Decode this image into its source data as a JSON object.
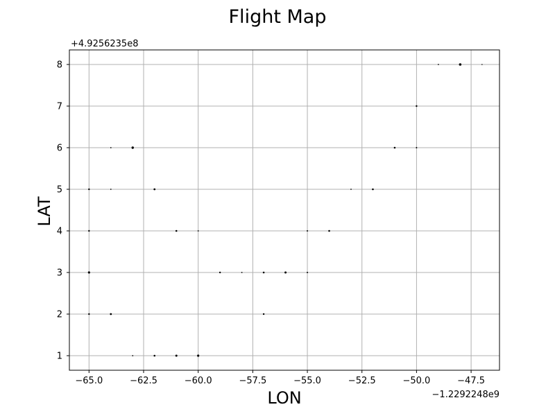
{
  "chart_data": {
    "type": "scatter",
    "title": "Flight Map",
    "xlabel": "LON",
    "ylabel": "LAT",
    "x_offset_label": "−1.2292248e9",
    "y_offset_label": "+4.9256235e8",
    "xlim": [
      -65.9,
      -46.2
    ],
    "ylim": [
      0.65,
      8.35
    ],
    "x_ticks": [
      -65.0,
      -62.5,
      -60.0,
      -57.5,
      -55.0,
      -52.5,
      -50.0,
      -47.5
    ],
    "x_tick_labels": [
      "−65.0",
      "−62.5",
      "−60.0",
      "−57.5",
      "−55.0",
      "−52.5",
      "−50.0",
      "−47.5"
    ],
    "y_ticks": [
      1,
      2,
      3,
      4,
      5,
      6,
      7,
      8
    ],
    "y_tick_labels": [
      "1",
      "2",
      "3",
      "4",
      "5",
      "6",
      "7",
      "8"
    ],
    "grid": true,
    "marker_color": "#000000",
    "points": [
      {
        "x": -65,
        "y": 2,
        "s": 1.2
      },
      {
        "x": -64,
        "y": 2,
        "s": 1.4
      },
      {
        "x": -65,
        "y": 3,
        "s": 1.6
      },
      {
        "x": -65,
        "y": 4,
        "s": 1.2
      },
      {
        "x": -65,
        "y": 5,
        "s": 1.2
      },
      {
        "x": -64,
        "y": 5,
        "s": 0.9
      },
      {
        "x": -64,
        "y": 6,
        "s": 0.9
      },
      {
        "x": -63,
        "y": 6,
        "s": 1.7
      },
      {
        "x": -62,
        "y": 5,
        "s": 1.4
      },
      {
        "x": -61,
        "y": 4,
        "s": 1.3
      },
      {
        "x": -60,
        "y": 4,
        "s": 0.9
      },
      {
        "x": -59,
        "y": 3,
        "s": 1.2
      },
      {
        "x": -58,
        "y": 3,
        "s": 0.9
      },
      {
        "x": -57,
        "y": 3,
        "s": 1.3
      },
      {
        "x": -56,
        "y": 3,
        "s": 1.5
      },
      {
        "x": -55,
        "y": 3,
        "s": 1.0
      },
      {
        "x": -57,
        "y": 2,
        "s": 1.2
      },
      {
        "x": -55,
        "y": 4,
        "s": 1.0
      },
      {
        "x": -54,
        "y": 4,
        "s": 1.3
      },
      {
        "x": -53,
        "y": 5,
        "s": 0.9
      },
      {
        "x": -52,
        "y": 5,
        "s": 1.3
      },
      {
        "x": -51,
        "y": 6,
        "s": 1.3
      },
      {
        "x": -50,
        "y": 6,
        "s": 1.0
      },
      {
        "x": -50,
        "y": 7,
        "s": 1.2
      },
      {
        "x": -49,
        "y": 8,
        "s": 0.9
      },
      {
        "x": -48,
        "y": 8,
        "s": 1.8
      },
      {
        "x": -47,
        "y": 8,
        "s": 0.8
      },
      {
        "x": -63,
        "y": 1,
        "s": 0.9
      },
      {
        "x": -62,
        "y": 1,
        "s": 1.3
      },
      {
        "x": -61,
        "y": 1,
        "s": 1.5
      },
      {
        "x": -60,
        "y": 1,
        "s": 1.6
      }
    ]
  }
}
